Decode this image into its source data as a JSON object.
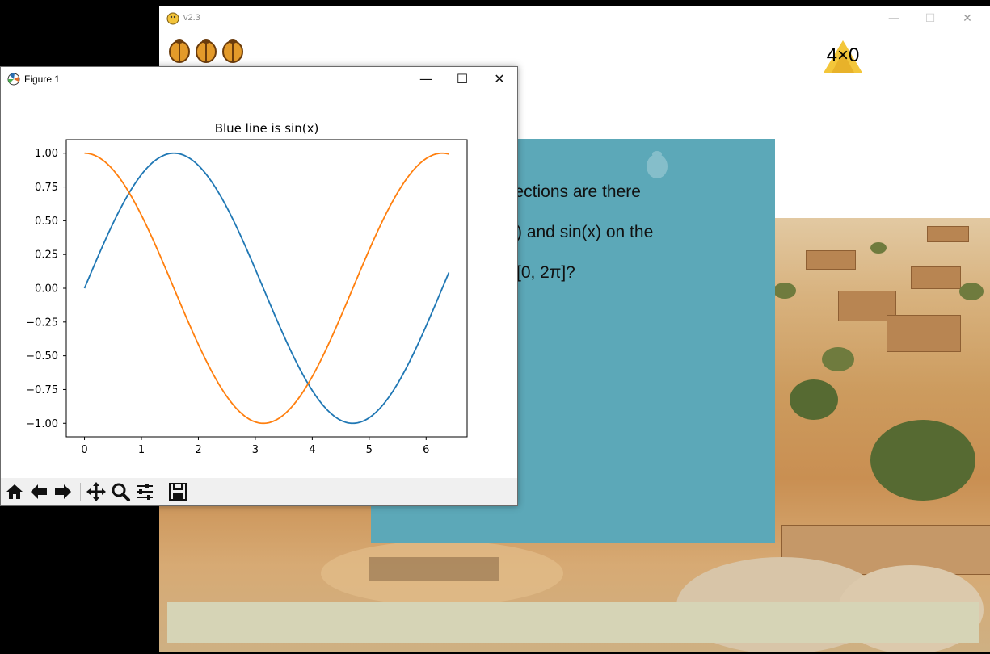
{
  "game": {
    "title": "v2.3",
    "score": "4×0",
    "question": [
      "rsections are there",
      ") and sin(x) on the",
      "[0, 2π]?"
    ]
  },
  "figure": {
    "title": "Figure 1",
    "toolbar": [
      "home-icon",
      "back-icon",
      "forward-icon",
      "pan-icon",
      "zoom-icon",
      "configure-icon",
      "save-icon"
    ]
  },
  "colors": {
    "sin": "#1f77b4",
    "cos": "#ff7f0e",
    "panel": "#5ca8b8"
  },
  "chart_data": {
    "type": "line",
    "title": "Blue line is sin(x)",
    "xlabel": "",
    "ylabel": "",
    "xlim": [
      -0.32,
      6.72
    ],
    "ylim": [
      -1.1,
      1.1
    ],
    "xticks": [
      0,
      1,
      2,
      3,
      4,
      5,
      6
    ],
    "yticks": [
      1.0,
      0.75,
      0.5,
      0.25,
      0.0,
      -0.25,
      -0.5,
      -0.75,
      -1.0
    ],
    "ytick_labels": [
      "1.00",
      "0.75",
      "0.50",
      "0.25",
      "0.00",
      "−0.25",
      "−0.50",
      "−0.75",
      "−1.00"
    ],
    "series": [
      {
        "function": "sin",
        "color": "#1f77b4",
        "x_range": [
          0,
          6.4
        ],
        "x": [
          0,
          0.5,
          1,
          1.5707963,
          2,
          2.5,
          3,
          3.5,
          4,
          4.712389,
          5,
          5.5,
          6,
          6.4
        ],
        "y": [
          0,
          0.479,
          0.841,
          1.0,
          0.909,
          0.598,
          0.141,
          -0.351,
          -0.757,
          -1.0,
          -0.959,
          -0.706,
          -0.279,
          0.117
        ]
      },
      {
        "function": "cos",
        "color": "#ff7f0e",
        "x_range": [
          0,
          6.4
        ],
        "x": [
          0,
          0.5,
          1,
          1.5,
          2,
          2.5,
          3,
          3.1415927,
          3.5,
          4,
          4.5,
          5,
          5.5,
          6,
          6.2831853,
          6.4
        ],
        "y": [
          1.0,
          0.878,
          0.54,
          0.071,
          -0.416,
          -0.801,
          -0.99,
          -1.0,
          -0.936,
          -0.654,
          -0.211,
          0.284,
          0.709,
          0.96,
          1.0,
          0.993
        ]
      }
    ],
    "grid": false
  }
}
